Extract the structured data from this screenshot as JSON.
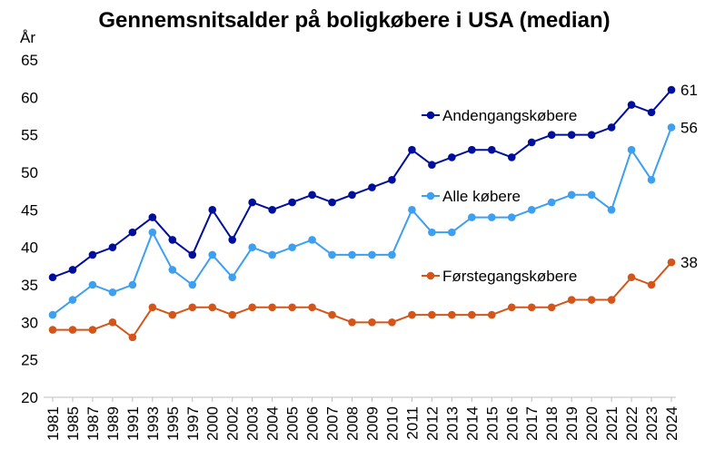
{
  "chart_data": {
    "type": "line",
    "title": "Gennemsnitsalder på boligkøbere i USA (median)",
    "ylabel": "År",
    "xlabel": "",
    "ylim": [
      20,
      65
    ],
    "yticks": [
      20,
      25,
      30,
      35,
      40,
      45,
      50,
      55,
      60,
      65
    ],
    "grid": false,
    "legend": "inline-right",
    "categories": [
      "1981",
      "1985",
      "1987",
      "1989",
      "1991",
      "1993",
      "1995",
      "1997",
      "2000",
      "2002",
      "2003",
      "2004",
      "2005",
      "2006",
      "2007",
      "2008",
      "2009",
      "2010",
      "2011",
      "2012",
      "2013",
      "2014",
      "2015",
      "2016",
      "2017",
      "2018",
      "2019",
      "2020",
      "2021",
      "2022",
      "2023",
      "2024"
    ],
    "series": [
      {
        "name": "Andengangskøbere",
        "color": "#000e9c",
        "end_label": "61",
        "values": [
          36,
          37,
          39,
          40,
          42,
          44,
          41,
          39,
          45,
          41,
          46,
          45,
          46,
          47,
          46,
          47,
          48,
          49,
          53,
          51,
          52,
          53,
          53,
          52,
          54,
          55,
          55,
          55,
          56,
          59,
          58,
          61
        ]
      },
      {
        "name": "Alle købere",
        "color": "#3d9ff0",
        "end_label": "56",
        "values": [
          31,
          33,
          35,
          34,
          35,
          42,
          37,
          35,
          39,
          36,
          40,
          39,
          40,
          41,
          39,
          39,
          39,
          39,
          45,
          42,
          42,
          44,
          44,
          44,
          45,
          46,
          47,
          47,
          45,
          53,
          49,
          56
        ]
      },
      {
        "name": "Førstegangskøbere",
        "color": "#d4551a",
        "end_label": "38",
        "values": [
          29,
          29,
          29,
          30,
          28,
          32,
          31,
          32,
          32,
          31,
          32,
          32,
          32,
          32,
          31,
          30,
          30,
          30,
          31,
          31,
          31,
          31,
          31,
          32,
          32,
          32,
          33,
          33,
          33,
          36,
          35,
          38
        ]
      }
    ]
  }
}
